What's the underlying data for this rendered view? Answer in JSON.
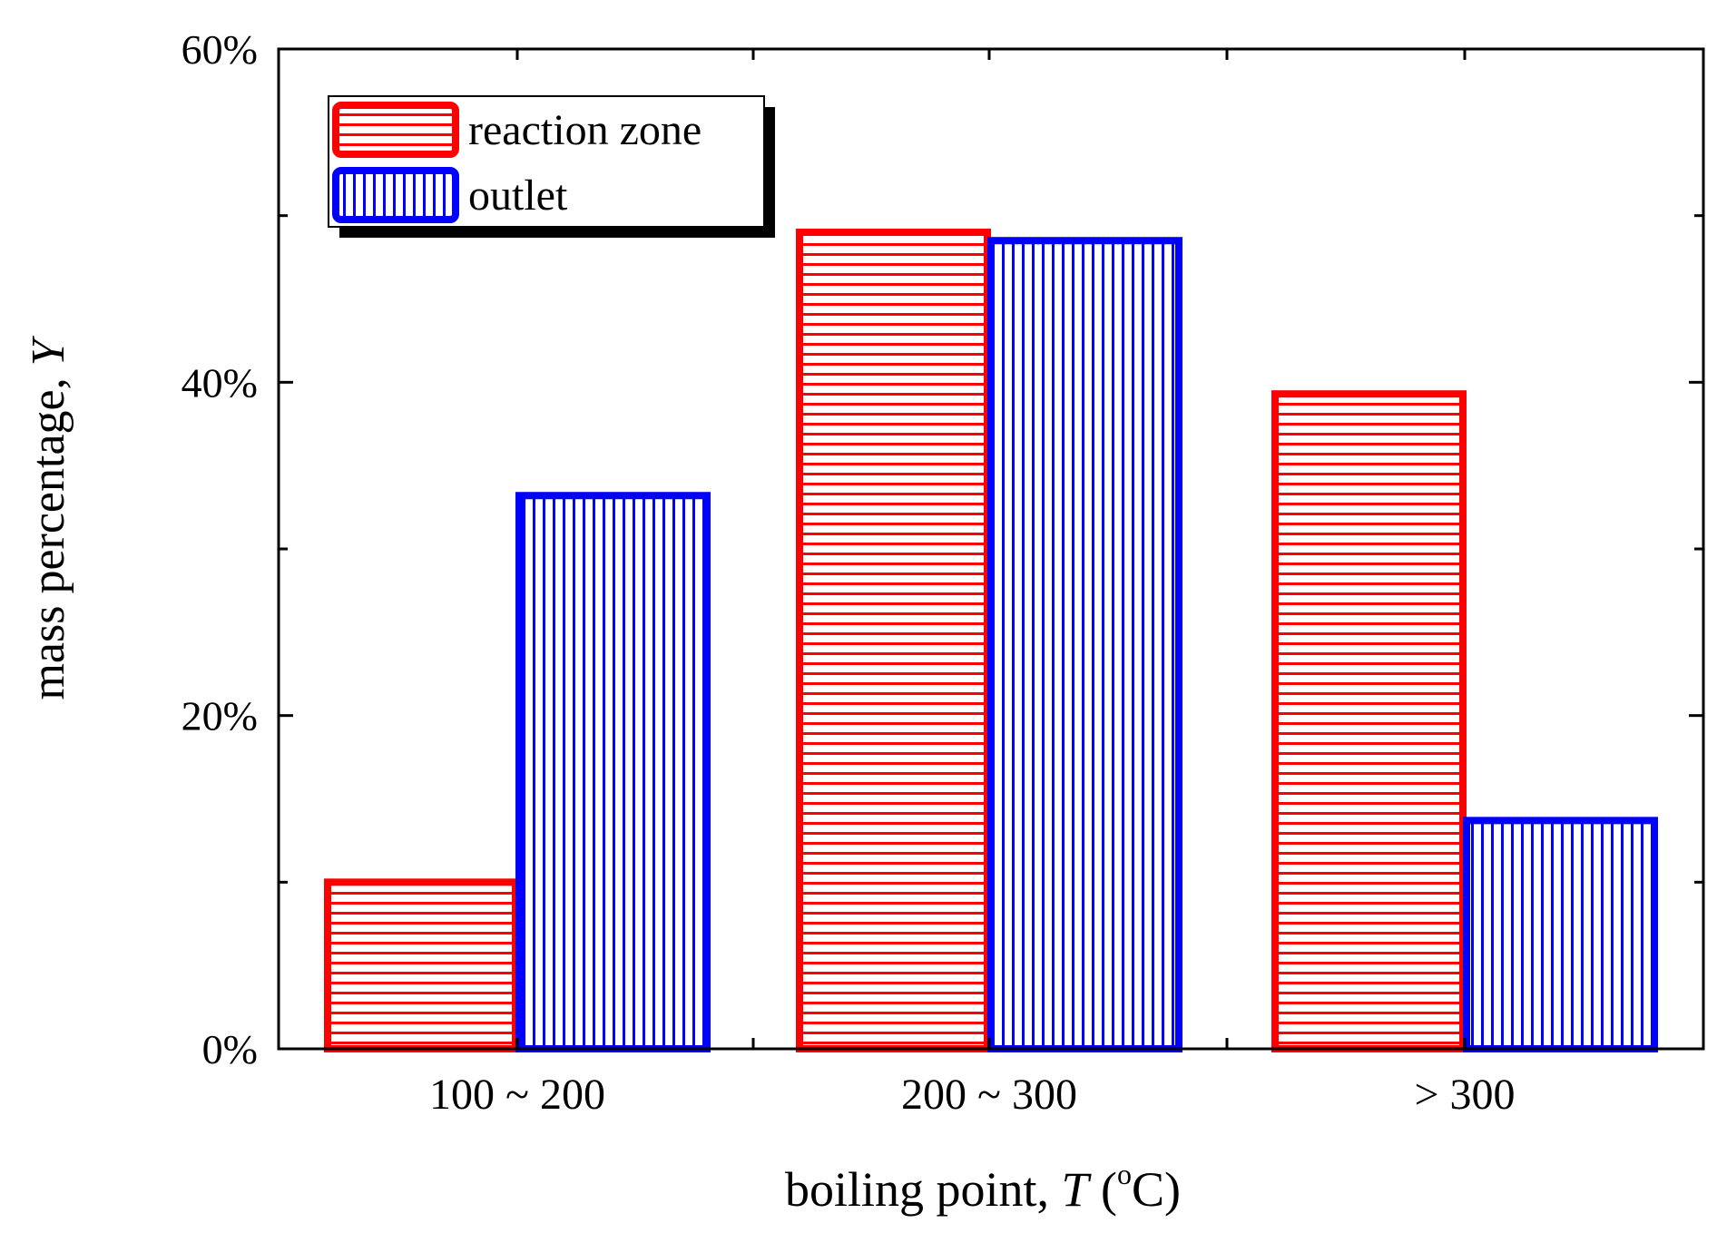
{
  "chart_data": {
    "type": "bar",
    "title": "",
    "xlabel_main": "boiling point, ",
    "xlabel_var": "T",
    "xlabel_open": " (",
    "xlabel_sup": "o",
    "xlabel_unit": "C)",
    "ylabel_main": "mass percentage, ",
    "ylabel_var": "Y",
    "categories": [
      "100 ~ 200",
      "200 ~ 300",
      "> 300"
    ],
    "series": [
      {
        "name": "reaction zone",
        "values": [
          10,
          49,
          39.3
        ],
        "color": "#ff0000",
        "hatch": "horizontal"
      },
      {
        "name": "outlet",
        "values": [
          33.2,
          48.5,
          13.7
        ],
        "color": "#0000ff",
        "hatch": "vertical"
      }
    ],
    "ylim": [
      0,
      60
    ],
    "yticks": [
      0,
      20,
      40,
      60
    ],
    "ytick_labels": [
      "0%",
      "20%",
      "40%",
      "60%"
    ],
    "y_minor_step": 10,
    "legend_position": "top-left",
    "grid": false
  }
}
